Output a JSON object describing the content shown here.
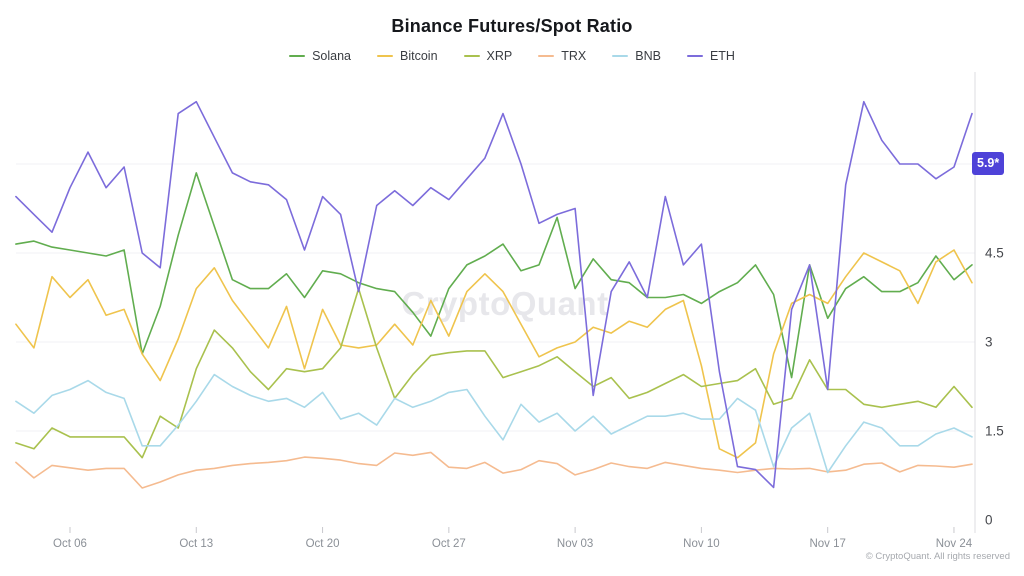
{
  "title": "Binance Futures/Spot Ratio",
  "watermark": "CryptoQuant",
  "footer": "© CryptoQuant. All rights reserved",
  "badge": {
    "label": "5.9*",
    "value": 5.9,
    "color": "#4e42d8"
  },
  "colors": {
    "grid": "#f1f1f5",
    "axis_line": "#dddde2",
    "tick": "#c8c8cd",
    "x_label": "#8b9097",
    "y_label": "#46484d"
  },
  "chart_data": {
    "type": "line",
    "title": "Binance Futures/Spot Ratio",
    "xlabel": "",
    "ylabel": "",
    "ylim": [
      0,
      7.5
    ],
    "y_ticks": [
      0,
      1.5,
      3,
      4.5
    ],
    "gridline_values": [
      1.5,
      3,
      4.5,
      6
    ],
    "grid": "horizontal-faint",
    "legend_position": "top",
    "x": [
      "Oct 03",
      "Oct 04",
      "Oct 05",
      "Oct 06",
      "Oct 07",
      "Oct 08",
      "Oct 09",
      "Oct 10",
      "Oct 11",
      "Oct 12",
      "Oct 13",
      "Oct 14",
      "Oct 15",
      "Oct 16",
      "Oct 17",
      "Oct 18",
      "Oct 19",
      "Oct 20",
      "Oct 21",
      "Oct 22",
      "Oct 23",
      "Oct 24",
      "Oct 25",
      "Oct 26",
      "Oct 27",
      "Oct 28",
      "Oct 29",
      "Oct 30",
      "Oct 31",
      "Nov 01",
      "Nov 02",
      "Nov 03",
      "Nov 04",
      "Nov 05",
      "Nov 06",
      "Nov 07",
      "Nov 08",
      "Nov 09",
      "Nov 10",
      "Nov 11",
      "Nov 12",
      "Nov 13",
      "Nov 14",
      "Nov 15",
      "Nov 16",
      "Nov 17",
      "Nov 18",
      "Nov 19",
      "Nov 20",
      "Nov 21",
      "Nov 22",
      "Nov 23",
      "Nov 24",
      "Nov 25"
    ],
    "x_tick_indices": [
      3,
      10,
      17,
      24,
      31,
      38,
      45,
      52
    ],
    "x_tick_labels": [
      "Oct 06",
      "Oct 13",
      "Oct 20",
      "Oct 27",
      "Nov 03",
      "Nov 10",
      "Nov 17",
      "Nov 24"
    ],
    "series": [
      {
        "name": "Solana",
        "color": "#61ad4f",
        "values": [
          4.65,
          4.7,
          4.6,
          4.55,
          4.5,
          4.45,
          4.55,
          2.8,
          3.6,
          4.8,
          5.85,
          4.95,
          4.05,
          3.9,
          3.9,
          4.15,
          3.75,
          4.2,
          4.15,
          4.0,
          3.9,
          3.85,
          3.5,
          3.1,
          3.9,
          4.3,
          4.45,
          4.65,
          4.2,
          4.3,
          5.1,
          3.9,
          4.4,
          4.05,
          4.0,
          3.75,
          3.75,
          3.8,
          3.65,
          3.85,
          4.0,
          4.3,
          3.8,
          2.4,
          4.3,
          3.4,
          3.9,
          4.1,
          3.85,
          3.85,
          4.0,
          4.45,
          4.05,
          4.3
        ]
      },
      {
        "name": "Bitcoin",
        "color": "#efc44d",
        "values": [
          3.3,
          2.9,
          4.1,
          3.75,
          4.05,
          3.45,
          3.55,
          2.8,
          2.35,
          3.05,
          3.9,
          4.25,
          3.7,
          3.3,
          2.9,
          3.6,
          2.55,
          3.55,
          2.95,
          2.9,
          2.95,
          3.3,
          2.95,
          3.7,
          3.1,
          3.85,
          4.15,
          3.85,
          3.3,
          2.75,
          2.9,
          3.0,
          3.25,
          3.15,
          3.35,
          3.25,
          3.55,
          3.7,
          2.6,
          1.2,
          1.05,
          1.3,
          2.8,
          3.65,
          3.8,
          3.65,
          4.1,
          4.5,
          4.35,
          4.2,
          3.65,
          4.35,
          4.55,
          4.0
        ]
      },
      {
        "name": "XRP",
        "color": "#a9c14e",
        "values": [
          1.3,
          1.2,
          1.55,
          1.4,
          1.4,
          1.4,
          1.4,
          1.05,
          1.75,
          1.55,
          2.55,
          3.2,
          2.9,
          2.5,
          2.2,
          2.55,
          2.5,
          2.55,
          2.9,
          3.9,
          2.9,
          2.05,
          2.45,
          2.77,
          2.82,
          2.85,
          2.85,
          2.4,
          2.5,
          2.6,
          2.75,
          2.5,
          2.25,
          2.4,
          2.05,
          2.15,
          2.3,
          2.45,
          2.25,
          2.3,
          2.35,
          2.55,
          1.95,
          2.05,
          2.7,
          2.2,
          2.2,
          1.95,
          1.9,
          1.95,
          2.0,
          1.9,
          2.25,
          1.9
        ]
      },
      {
        "name": "TRX",
        "color": "#f5bb90",
        "values": [
          0.97,
          0.71,
          0.92,
          0.88,
          0.84,
          0.87,
          0.87,
          0.54,
          0.64,
          0.76,
          0.84,
          0.87,
          0.92,
          0.95,
          0.97,
          1.0,
          1.06,
          1.04,
          1.01,
          0.95,
          0.92,
          1.13,
          1.09,
          1.14,
          0.89,
          0.87,
          0.97,
          0.79,
          0.85,
          1.0,
          0.95,
          0.76,
          0.85,
          0.96,
          0.9,
          0.87,
          0.97,
          0.92,
          0.87,
          0.84,
          0.8,
          0.84,
          0.87,
          0.86,
          0.87,
          0.81,
          0.84,
          0.94,
          0.96,
          0.81,
          0.92,
          0.91,
          0.89,
          0.94
        ]
      },
      {
        "name": "BNB",
        "color": "#a9d9e9",
        "values": [
          2.0,
          1.8,
          2.1,
          2.2,
          2.35,
          2.15,
          2.05,
          1.25,
          1.25,
          1.6,
          2.0,
          2.45,
          2.25,
          2.1,
          2.0,
          2.05,
          1.9,
          2.15,
          1.7,
          1.8,
          1.6,
          2.05,
          1.9,
          2.0,
          2.15,
          2.2,
          1.75,
          1.35,
          1.95,
          1.65,
          1.8,
          1.5,
          1.75,
          1.45,
          1.6,
          1.75,
          1.75,
          1.8,
          1.7,
          1.7,
          2.05,
          1.85,
          0.9,
          1.55,
          1.8,
          0.8,
          1.25,
          1.65,
          1.55,
          1.25,
          1.25,
          1.45,
          1.55,
          1.4
        ]
      },
      {
        "name": "ETH",
        "color": "#7c6cdb",
        "values": [
          5.45,
          5.15,
          4.85,
          5.6,
          6.2,
          5.6,
          5.95,
          4.5,
          4.25,
          6.85,
          7.05,
          6.45,
          5.85,
          5.7,
          5.65,
          5.4,
          4.55,
          5.45,
          5.15,
          3.85,
          5.3,
          5.55,
          5.3,
          5.6,
          5.4,
          5.75,
          6.1,
          6.85,
          6.0,
          5.0,
          5.15,
          5.25,
          2.1,
          3.85,
          4.35,
          3.75,
          5.45,
          4.3,
          4.65,
          2.5,
          0.9,
          0.85,
          0.55,
          3.55,
          4.3,
          2.2,
          5.65,
          7.05,
          6.4,
          6.0,
          6.0,
          5.75,
          5.95,
          6.85
        ]
      }
    ]
  }
}
